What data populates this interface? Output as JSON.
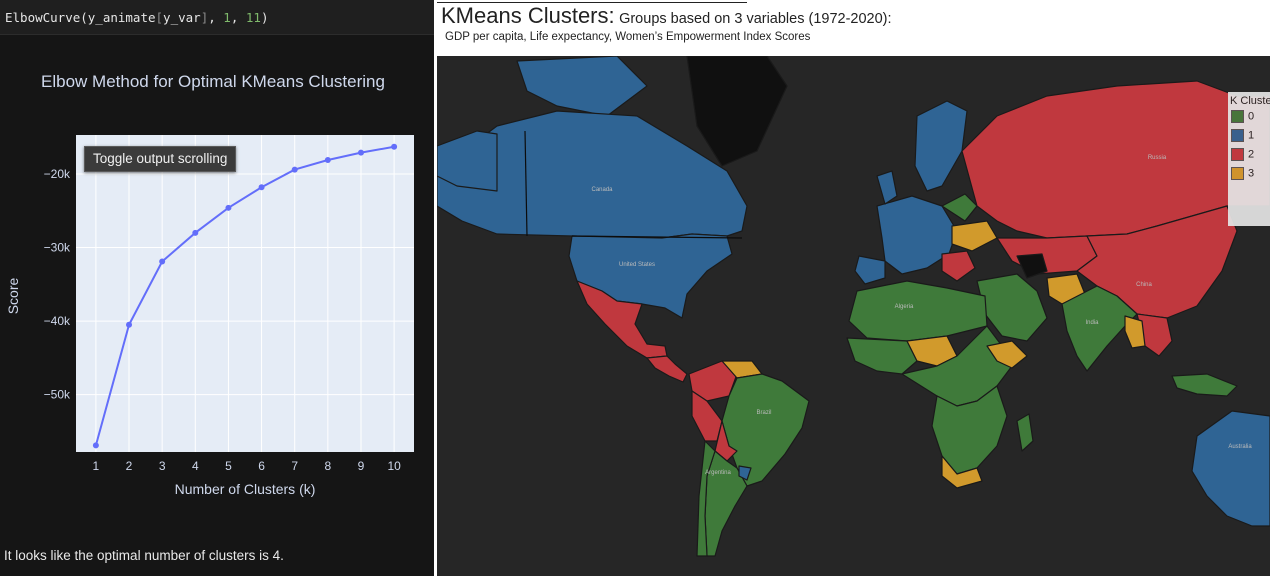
{
  "notebook": {
    "code": {
      "fn": "ElbowCurve(y_animate",
      "bracket_open": "[",
      "key": "y_var",
      "bracket_close": "]",
      "sep1": ", ",
      "arg1": "1",
      "sep2": ", ",
      "arg2": "11",
      "close": ")"
    },
    "toggle_label": "Toggle output scrolling",
    "conclusion": "It looks like the optimal number of clusters is 4."
  },
  "chart_data": {
    "type": "line",
    "title": "Elbow Method for Optimal KMeans Clustering",
    "xlabel": "Number of Clusters (k)",
    "ylabel": "Score",
    "x": [
      1,
      2,
      3,
      4,
      5,
      6,
      7,
      8,
      9,
      10
    ],
    "series": [
      {
        "values": [
          -56900,
          -40500,
          -31900,
          -28000,
          -24600,
          -21800,
          -19400,
          -18100,
          -17100,
          -16300
        ]
      }
    ],
    "ylim": [
      -57800,
      -14700
    ],
    "xlim": [
      0.4,
      10.6
    ],
    "yticks": [
      -50000,
      -40000,
      -30000,
      -20000
    ],
    "ytick_labels": [
      "−50k",
      "−40k",
      "−30k",
      "−20k"
    ],
    "xtick_labels": [
      "1",
      "2",
      "3",
      "4",
      "5",
      "6",
      "7",
      "8",
      "9",
      "10"
    ],
    "grid": true,
    "colors": {
      "line": "#636efa",
      "plot_bg": "#e5ecf6",
      "paper_bg": "#151515",
      "text": "#cfd8ec"
    }
  },
  "dashboard": {
    "title_main": "KMeans Clusters:",
    "title_rest": "Groups based on 3 variables (1972-2020):",
    "subtitle": "GDP per capita, Life expectancy, Women’s Empowerment Index Scores",
    "legend": {
      "title": "K Clusters",
      "items": [
        {
          "label": "0",
          "color": "#3f7a3a"
        },
        {
          "label": "1",
          "color": "#2f6494"
        },
        {
          "label": "2",
          "color": "#c0383e"
        },
        {
          "label": "3",
          "color": "#d19a2c"
        }
      ]
    },
    "map_labels": {
      "canada": "Canada",
      "united_states": "United States",
      "russia": "Russia",
      "china": "China",
      "india": "India",
      "brazil": "Brazil",
      "argentina": "Argentina",
      "algeria": "Algeria",
      "australia": "Australia"
    }
  }
}
